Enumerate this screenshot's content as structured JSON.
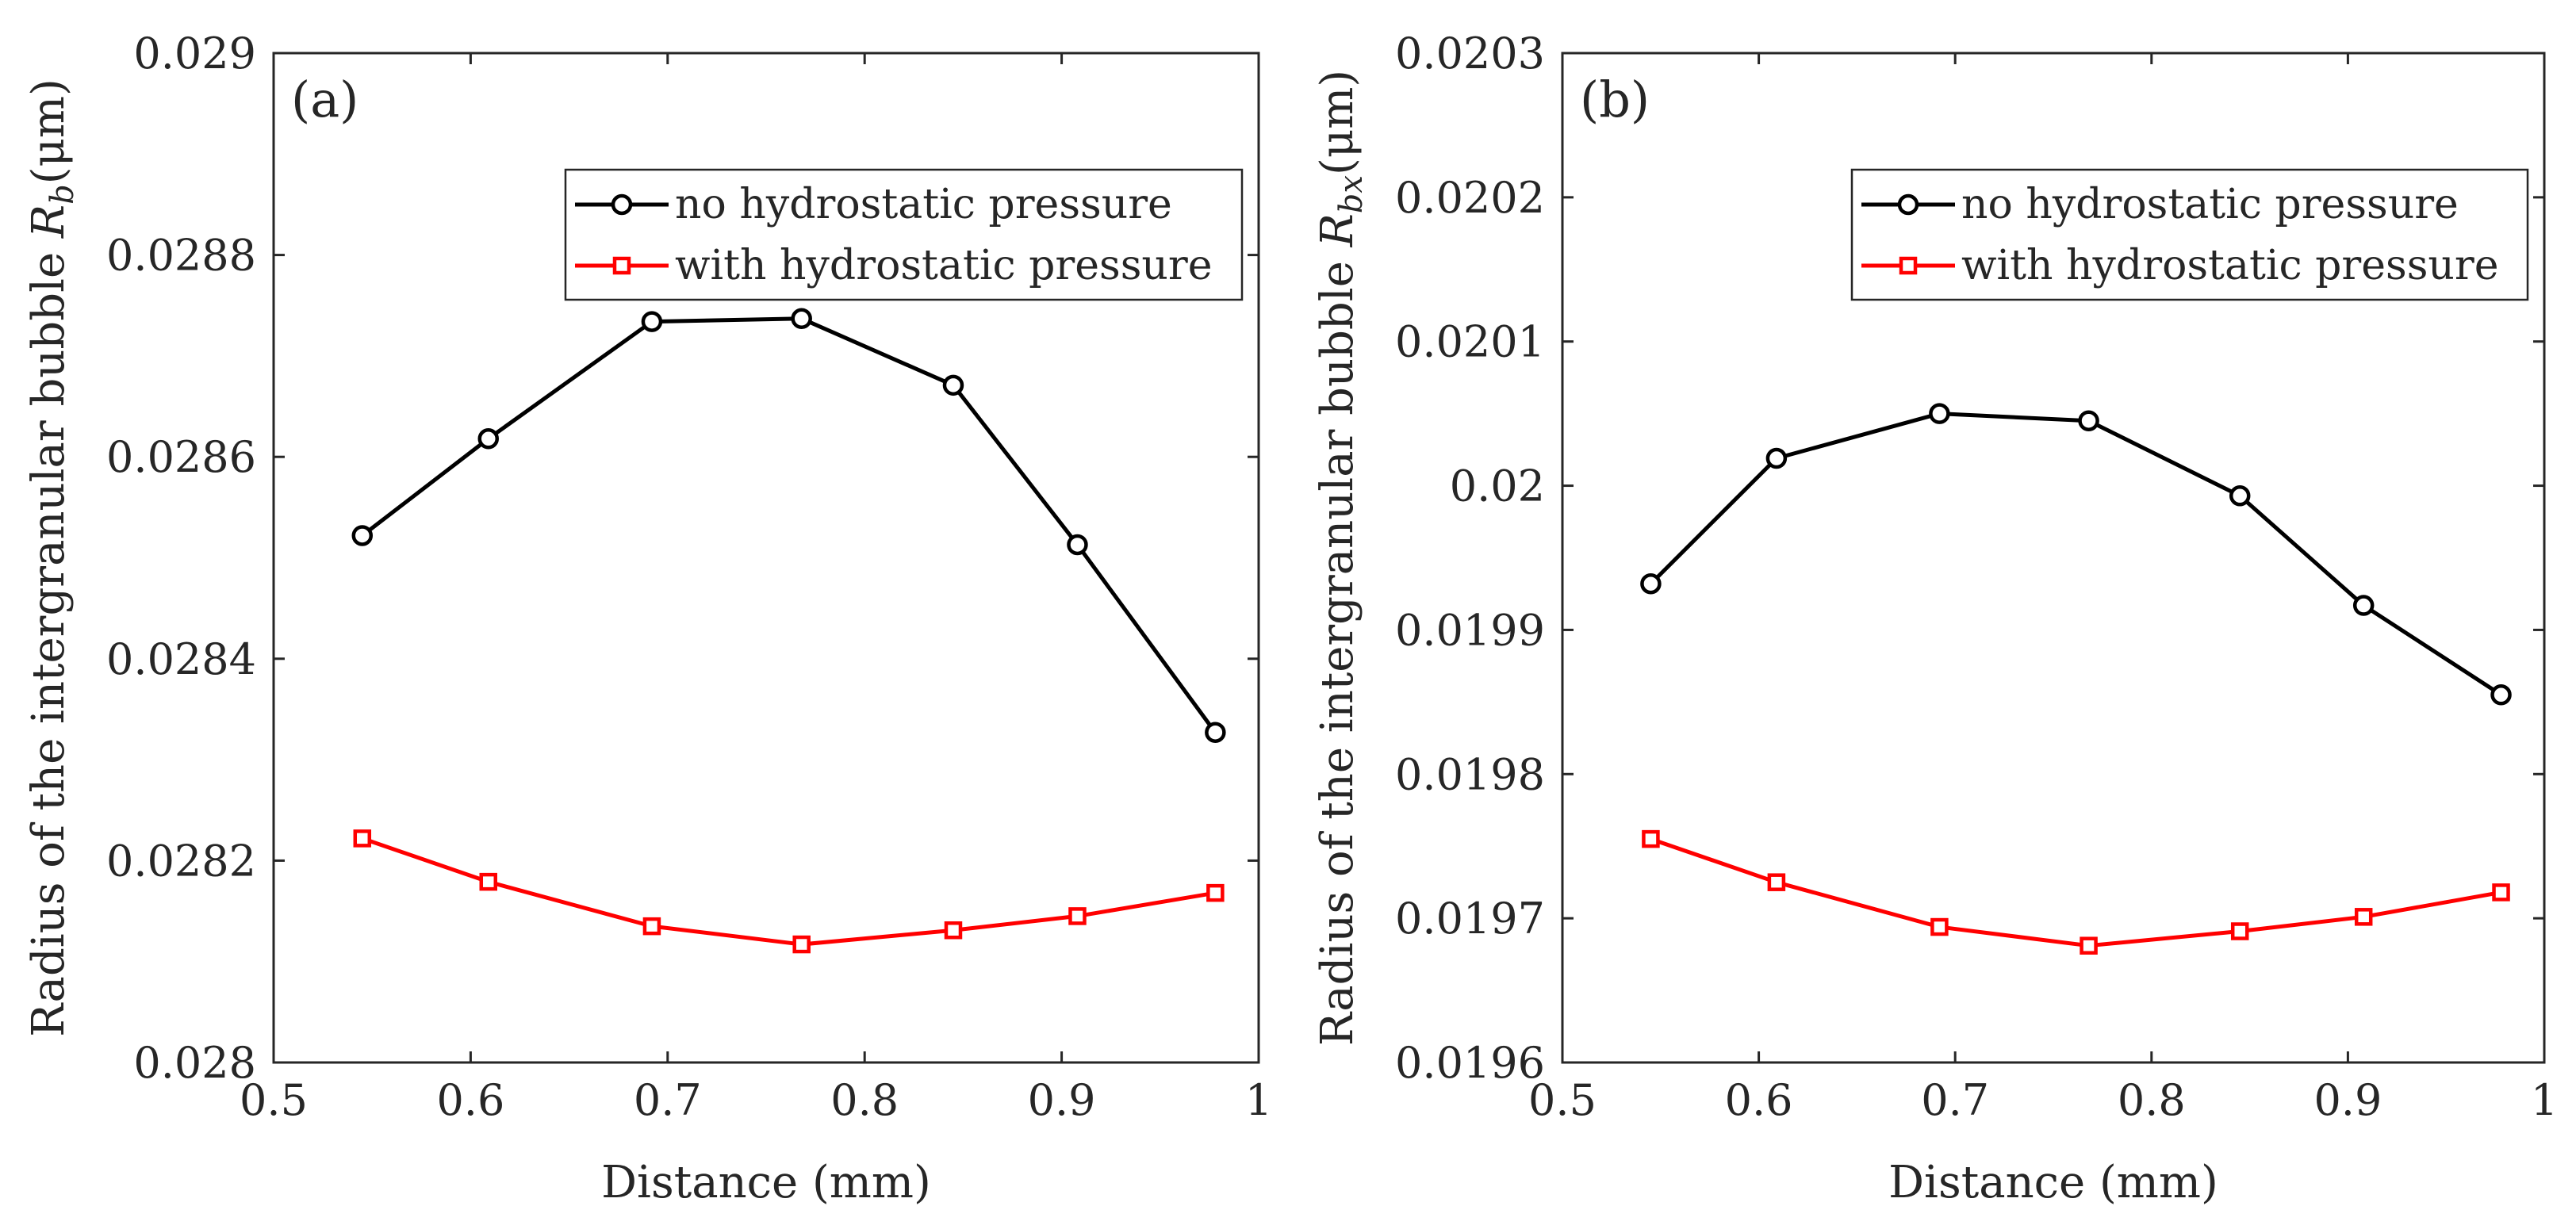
{
  "chart_data": [
    {
      "type": "line",
      "panel_label": "(a)",
      "xlabel": "Distance (mm)",
      "ylabel": {
        "prefix": "Radius of the intergranular bubble ",
        "symbol": "R",
        "subscript": "b",
        "unit": "(μm)"
      },
      "xlim": [
        0.5,
        1
      ],
      "ylim": [
        0.028,
        0.029
      ],
      "xticks": [
        0.5,
        0.6,
        0.7,
        0.8,
        0.9,
        1
      ],
      "xtick_labels": [
        "0.5",
        "0.6",
        "0.7",
        "0.8",
        "0.9",
        "1"
      ],
      "yticks": [
        0.028,
        0.0282,
        0.0284,
        0.0286,
        0.0288,
        0.029
      ],
      "ytick_labels": [
        "0.028",
        "0.0282",
        "0.0284",
        "0.0286",
        "0.0288",
        "0.029"
      ],
      "legend_position": "top-right",
      "x": [
        0.545,
        0.609,
        0.692,
        0.768,
        0.845,
        0.908,
        0.978
      ],
      "series": [
        {
          "name": "no hydrostatic pressure",
          "color": "#000000",
          "marker": "circle",
          "values": [
            0.028522,
            0.028618,
            0.028734,
            0.028737,
            0.028671,
            0.028513,
            0.028327
          ]
        },
        {
          "name": "with hydrostatic pressure",
          "color": "#ff0000",
          "marker": "square",
          "values": [
            0.028222,
            0.028179,
            0.028135,
            0.028117,
            0.028131,
            0.028145,
            0.028168
          ]
        }
      ]
    },
    {
      "type": "line",
      "panel_label": "(b)",
      "xlabel": "Distance (mm)",
      "ylabel": {
        "prefix": "Radius of the intergranular bubble ",
        "symbol": "R",
        "subscript": "bx",
        "unit": "(μm)"
      },
      "xlim": [
        0.5,
        1
      ],
      "ylim": [
        0.0196,
        0.0203
      ],
      "xticks": [
        0.5,
        0.6,
        0.7,
        0.8,
        0.9,
        1
      ],
      "xtick_labels": [
        "0.5",
        "0.6",
        "0.7",
        "0.8",
        "0.9",
        "1"
      ],
      "yticks": [
        0.0196,
        0.0197,
        0.0198,
        0.0199,
        0.02,
        0.0201,
        0.0202,
        0.0203
      ],
      "ytick_labels": [
        "0.0196",
        "0.0197",
        "0.0198",
        "0.0199",
        "0.02",
        "0.0201",
        "0.0202",
        "0.0203"
      ],
      "legend_position": "top-right",
      "x": [
        0.545,
        0.609,
        0.692,
        0.768,
        0.845,
        0.908,
        0.978
      ],
      "series": [
        {
          "name": "no hydrostatic pressure",
          "color": "#000000",
          "marker": "circle",
          "values": [
            0.019932,
            0.020019,
            0.02005,
            0.020045,
            0.019993,
            0.019917,
            0.019855
          ]
        },
        {
          "name": "with hydrostatic pressure",
          "color": "#ff0000",
          "marker": "square",
          "values": [
            0.019755,
            0.019725,
            0.019694,
            0.019681,
            0.019691,
            0.019701,
            0.019718
          ]
        }
      ]
    }
  ]
}
